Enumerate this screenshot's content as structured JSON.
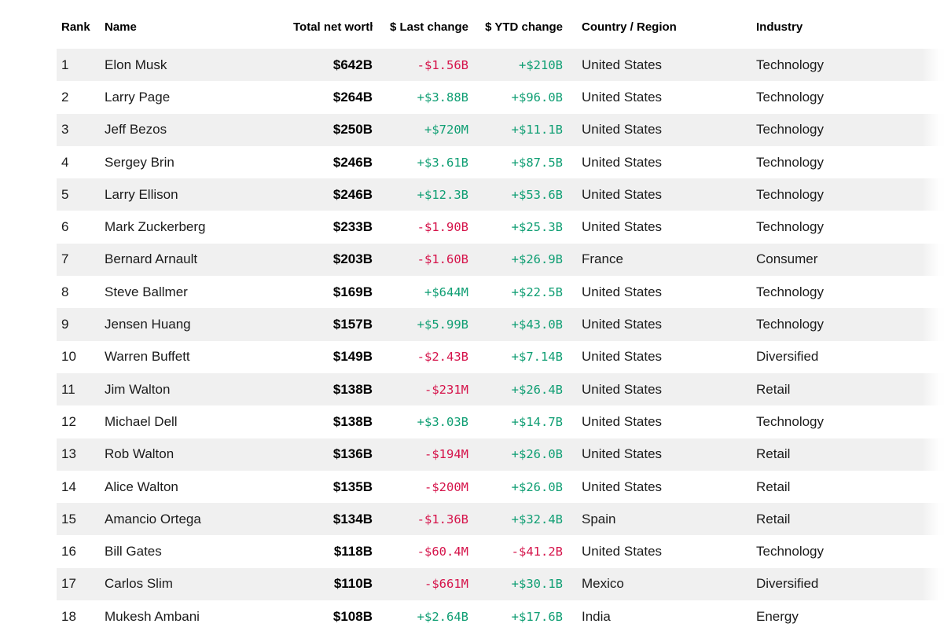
{
  "colors": {
    "positive": "#0f9e73",
    "negative": "#d5134a",
    "stripe": "#f0f0f0",
    "header_text": "#000000",
    "body_text": "#1b1b1b"
  },
  "table": {
    "columns": [
      {
        "key": "rank",
        "label": "Rank"
      },
      {
        "key": "name",
        "label": "Name"
      },
      {
        "key": "net_worth",
        "label": "Total net worth",
        "sorted": "descending"
      },
      {
        "key": "last_change",
        "label": "$ Last change"
      },
      {
        "key": "ytd_change",
        "label": "$ YTD change"
      },
      {
        "key": "country",
        "label": "Country / Region"
      },
      {
        "key": "industry",
        "label": "Industry"
      }
    ],
    "rows": [
      {
        "rank": "1",
        "name": "Elon Musk",
        "net_worth": "$642B",
        "last_change": "-$1.56B",
        "ytd_change": "+$210B",
        "country": "United States",
        "industry": "Technology"
      },
      {
        "rank": "2",
        "name": "Larry Page",
        "net_worth": "$264B",
        "last_change": "+$3.88B",
        "ytd_change": "+$96.0B",
        "country": "United States",
        "industry": "Technology"
      },
      {
        "rank": "3",
        "name": "Jeff Bezos",
        "net_worth": "$250B",
        "last_change": "+$720M",
        "ytd_change": "+$11.1B",
        "country": "United States",
        "industry": "Technology"
      },
      {
        "rank": "4",
        "name": "Sergey Brin",
        "net_worth": "$246B",
        "last_change": "+$3.61B",
        "ytd_change": "+$87.5B",
        "country": "United States",
        "industry": "Technology"
      },
      {
        "rank": "5",
        "name": "Larry Ellison",
        "net_worth": "$246B",
        "last_change": "+$12.3B",
        "ytd_change": "+$53.6B",
        "country": "United States",
        "industry": "Technology"
      },
      {
        "rank": "6",
        "name": "Mark Zuckerberg",
        "net_worth": "$233B",
        "last_change": "-$1.90B",
        "ytd_change": "+$25.3B",
        "country": "United States",
        "industry": "Technology"
      },
      {
        "rank": "7",
        "name": "Bernard Arnault",
        "net_worth": "$203B",
        "last_change": "-$1.60B",
        "ytd_change": "+$26.9B",
        "country": "France",
        "industry": "Consumer"
      },
      {
        "rank": "8",
        "name": "Steve Ballmer",
        "net_worth": "$169B",
        "last_change": "+$644M",
        "ytd_change": "+$22.5B",
        "country": "United States",
        "industry": "Technology"
      },
      {
        "rank": "9",
        "name": "Jensen Huang",
        "net_worth": "$157B",
        "last_change": "+$5.99B",
        "ytd_change": "+$43.0B",
        "country": "United States",
        "industry": "Technology"
      },
      {
        "rank": "10",
        "name": "Warren Buffett",
        "net_worth": "$149B",
        "last_change": "-$2.43B",
        "ytd_change": "+$7.14B",
        "country": "United States",
        "industry": "Diversified"
      },
      {
        "rank": "11",
        "name": "Jim Walton",
        "net_worth": "$138B",
        "last_change": "-$231M",
        "ytd_change": "+$26.4B",
        "country": "United States",
        "industry": "Retail"
      },
      {
        "rank": "12",
        "name": "Michael Dell",
        "net_worth": "$138B",
        "last_change": "+$3.03B",
        "ytd_change": "+$14.7B",
        "country": "United States",
        "industry": "Technology"
      },
      {
        "rank": "13",
        "name": "Rob Walton",
        "net_worth": "$136B",
        "last_change": "-$194M",
        "ytd_change": "+$26.0B",
        "country": "United States",
        "industry": "Retail"
      },
      {
        "rank": "14",
        "name": "Alice Walton",
        "net_worth": "$135B",
        "last_change": "-$200M",
        "ytd_change": "+$26.0B",
        "country": "United States",
        "industry": "Retail"
      },
      {
        "rank": "15",
        "name": "Amancio Ortega",
        "net_worth": "$134B",
        "last_change": "-$1.36B",
        "ytd_change": "+$32.4B",
        "country": "Spain",
        "industry": "Retail"
      },
      {
        "rank": "16",
        "name": "Bill Gates",
        "net_worth": "$118B",
        "last_change": "-$60.4M",
        "ytd_change": "-$41.2B",
        "country": "United States",
        "industry": "Technology"
      },
      {
        "rank": "17",
        "name": "Carlos Slim",
        "net_worth": "$110B",
        "last_change": "-$661M",
        "ytd_change": "+$30.1B",
        "country": "Mexico",
        "industry": "Diversified"
      },
      {
        "rank": "18",
        "name": "Mukesh Ambani",
        "net_worth": "$108B",
        "last_change": "+$2.64B",
        "ytd_change": "+$17.6B",
        "country": "India",
        "industry": "Energy"
      }
    ]
  }
}
